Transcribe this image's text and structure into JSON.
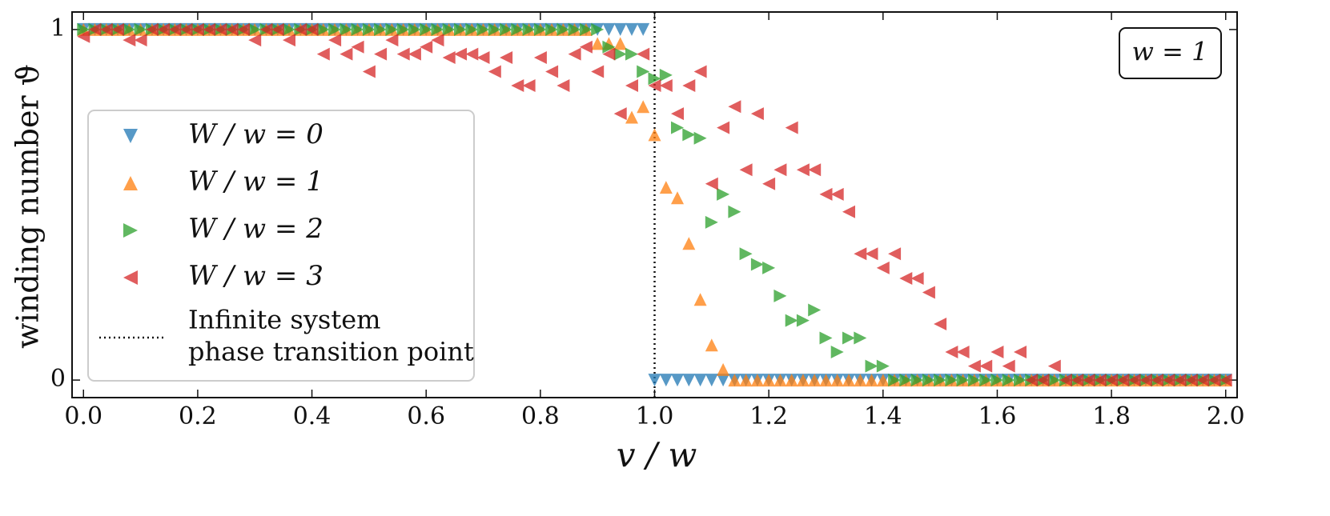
{
  "chart_data": {
    "type": "scatter",
    "xlabel": "v / w",
    "ylabel": "winding number ϑ",
    "annotation": "w = 1",
    "xlim": [
      -0.02,
      2.02
    ],
    "ylim": [
      -0.05,
      1.05
    ],
    "xticks": [
      {
        "value": 0,
        "label": "0.0"
      },
      0.2,
      0.4,
      0.6,
      0.8,
      {
        "value": 1,
        "label": "1.0"
      },
      1.2,
      1.4,
      1.6,
      1.8,
      {
        "value": 2,
        "label": "2.0"
      }
    ],
    "yticks": [
      0,
      1
    ],
    "vline": {
      "x": 1,
      "label": [
        "Infinite system",
        "phase transition point"
      ]
    },
    "x": [
      0,
      0.02,
      0.04,
      0.06,
      0.08,
      0.1,
      0.12,
      0.14,
      0.16,
      0.18,
      0.2,
      0.22,
      0.24,
      0.26,
      0.28,
      0.3,
      0.32,
      0.34,
      0.36,
      0.38,
      0.4,
      0.42,
      0.44,
      0.46,
      0.48,
      0.5,
      0.52,
      0.54,
      0.56,
      0.58,
      0.6,
      0.62,
      0.64,
      0.66,
      0.68,
      0.7,
      0.72,
      0.74,
      0.76,
      0.78,
      0.8,
      0.82,
      0.84,
      0.86,
      0.88,
      0.9,
      0.92,
      0.94,
      0.96,
      0.98,
      1,
      1.02,
      1.04,
      1.06,
      1.08,
      1.1,
      1.12,
      1.14,
      1.16,
      1.18,
      1.2,
      1.22,
      1.24,
      1.26,
      1.28,
      1.3,
      1.32,
      1.34,
      1.36,
      1.38,
      1.4,
      1.42,
      1.44,
      1.46,
      1.48,
      1.5,
      1.52,
      1.54,
      1.56,
      1.58,
      1.6,
      1.62,
      1.64,
      1.66,
      1.68,
      1.7,
      1.72,
      1.74,
      1.76,
      1.78,
      1.8,
      1.82,
      1.84,
      1.86,
      1.88,
      1.9,
      1.92,
      1.94,
      1.96,
      1.98,
      2
    ],
    "series": [
      {
        "name": "W / w = 0",
        "color": "#1f77b4",
        "marker": "down",
        "values": [
          1,
          1,
          1,
          1,
          1,
          1,
          1,
          1,
          1,
          1,
          1,
          1,
          1,
          1,
          1,
          1,
          1,
          1,
          1,
          1,
          1,
          1,
          1,
          1,
          1,
          1,
          1,
          1,
          1,
          1,
          1,
          1,
          1,
          1,
          1,
          1,
          1,
          1,
          1,
          1,
          1,
          1,
          1,
          1,
          1,
          1,
          1,
          1,
          1,
          1,
          0,
          0,
          0,
          0,
          0,
          0,
          0,
          0,
          0,
          0,
          0,
          0,
          0,
          0,
          0,
          0,
          0,
          0,
          0,
          0,
          0,
          0,
          0,
          0,
          0,
          0,
          0,
          0,
          0,
          0,
          0,
          0,
          0,
          0,
          0,
          0,
          0,
          0,
          0,
          0,
          0,
          0,
          0,
          0,
          0,
          0,
          0,
          0,
          0,
          0,
          0
        ]
      },
      {
        "name": "W / w = 1",
        "color": "#ff7f0e",
        "marker": "up",
        "values": [
          1,
          1,
          1,
          1,
          1,
          1,
          1,
          1,
          1,
          1,
          1,
          1,
          1,
          1,
          1,
          1,
          1,
          1,
          1,
          1,
          1,
          1,
          1,
          1,
          1,
          1,
          1,
          1,
          1,
          1,
          1,
          1,
          1,
          1,
          1,
          1,
          1,
          1,
          1,
          1,
          1,
          1,
          1,
          1,
          1,
          0.96,
          0.96,
          0.96,
          0.75,
          0.78,
          0.7,
          0.55,
          0.52,
          0.39,
          0.23,
          0.1,
          0.03,
          0,
          0,
          0,
          0,
          0,
          0,
          0,
          0,
          0,
          0,
          0,
          0,
          0,
          0,
          0,
          0,
          0,
          0,
          0,
          0,
          0,
          0,
          0,
          0,
          0,
          0,
          0,
          0,
          0,
          0,
          0,
          0,
          0,
          0,
          0,
          0,
          0,
          0,
          0,
          0,
          0,
          0,
          0,
          0
        ]
      },
      {
        "name": "W / w = 2",
        "color": "#2ca02c",
        "marker": "right",
        "values": [
          1,
          1,
          1,
          1,
          1,
          1,
          1,
          1,
          1,
          1,
          1,
          1,
          1,
          1,
          1,
          1,
          1,
          1,
          1,
          1,
          1,
          1,
          1,
          1,
          1,
          1,
          1,
          1,
          1,
          1,
          1,
          1,
          1,
          1,
          1,
          1,
          1,
          1,
          1,
          1,
          1,
          1,
          1,
          1,
          1,
          1,
          0.95,
          0.93,
          0.93,
          0.88,
          0.86,
          0.87,
          0.72,
          0.7,
          0.69,
          0.45,
          0.53,
          0.48,
          0.36,
          0.33,
          0.32,
          0.24,
          0.17,
          0.17,
          0.2,
          0.12,
          0.08,
          0.12,
          0.12,
          0.04,
          0.04,
          0,
          0,
          0,
          0,
          0,
          0,
          0,
          0,
          0,
          0,
          0,
          0,
          0,
          0,
          0,
          0,
          0,
          0,
          0,
          0,
          0,
          0,
          0,
          0,
          0,
          0,
          0,
          0,
          0,
          0
        ]
      },
      {
        "name": "W / w = 3",
        "color": "#d62728",
        "marker": "left",
        "values": [
          0.98,
          1,
          1,
          1,
          0.97,
          0.97,
          1,
          1,
          1,
          1,
          1,
          1,
          1,
          1,
          1,
          0.97,
          1,
          1,
          0.97,
          1,
          1,
          0.93,
          0.97,
          0.93,
          0.95,
          0.88,
          0.93,
          0.97,
          0.93,
          0.93,
          0.95,
          0.97,
          0.92,
          0.93,
          0.93,
          0.92,
          0.88,
          0.92,
          0.84,
          0.84,
          0.92,
          0.88,
          0.84,
          0.93,
          0.95,
          0.88,
          0.93,
          0.76,
          0.84,
          0.93,
          0.84,
          0.84,
          0.76,
          0.84,
          0.88,
          0.56,
          0.72,
          0.78,
          0.6,
          0.76,
          0.56,
          0.6,
          0.72,
          0.6,
          0.6,
          0.53,
          0.53,
          0.48,
          0.36,
          0.36,
          0.32,
          0.36,
          0.29,
          0.29,
          0.25,
          0.16,
          0.08,
          0.08,
          0.04,
          0.04,
          0.08,
          0.04,
          0.08,
          0,
          0,
          0.04,
          0,
          0,
          0,
          0,
          0,
          0,
          0,
          0,
          0,
          0,
          0,
          0,
          0,
          0,
          0
        ]
      }
    ]
  }
}
